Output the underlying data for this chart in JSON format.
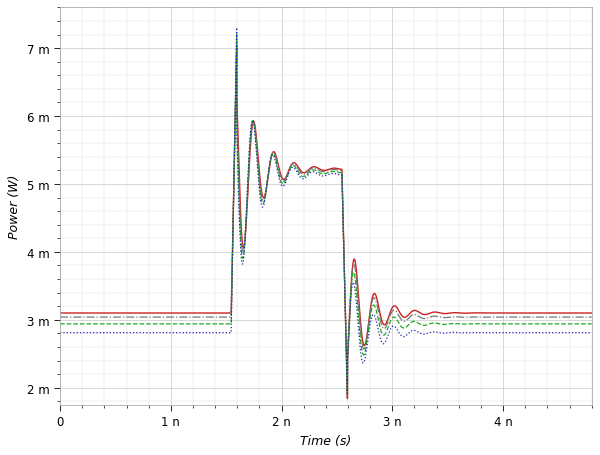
{
  "xlabel": "Time (s)",
  "ylabel": "Power (W)",
  "xlim": [
    0,
    4.8e-09
  ],
  "ylim": [
    0.00175,
    0.0076
  ],
  "xticks": [
    0,
    1e-09,
    2e-09,
    3e-09,
    4e-09
  ],
  "xtick_labels": [
    "0",
    "1 n",
    "2 n",
    "3 n",
    "4 n"
  ],
  "yticks": [
    0.002,
    0.003,
    0.004,
    0.005,
    0.006,
    0.007
  ],
  "ytick_labels": [
    "2 m",
    "3 m",
    "4 m",
    "5 m",
    "6 m",
    "7 m"
  ],
  "bg_color": "#ffffff",
  "colors": {
    "red": "#cc2222",
    "green": "#22aa22",
    "gray": "#777777",
    "blue": "#2222bb"
  },
  "t_rise": 1.57e-09,
  "t_fall": 2.57e-09,
  "osc_freq": 5500000000.0,
  "decay_tau_up": 1.8e-10,
  "decay_tau_dn": 1.8e-10,
  "channels": [
    {
      "base_low": 0.0031,
      "settle_high": 0.00522,
      "phase": 0.0,
      "peak_up": 0.007,
      "peak_down": 0.00182,
      "amp_up": 0.0019,
      "amp_dn": 0.0013,
      "color": "red",
      "ls": "solid",
      "lw": 1.0
    },
    {
      "base_low": 0.00304,
      "settle_high": 0.0052,
      "phase": 0.12,
      "peak_up": 0.0071,
      "peak_down": 0.00185,
      "amp_up": 0.00195,
      "amp_dn": 0.00125,
      "color": "gray",
      "ls": "dashdot",
      "lw": 0.9
    },
    {
      "base_low": 0.00294,
      "settle_high": 0.00517,
      "phase": 0.22,
      "peak_up": 0.0072,
      "peak_down": 0.00188,
      "amp_up": 0.002,
      "amp_dn": 0.0012,
      "color": "green",
      "ls": "dashed",
      "lw": 0.9
    },
    {
      "base_low": 0.00281,
      "settle_high": 0.00514,
      "phase": 0.32,
      "peak_up": 0.0073,
      "peak_down": 0.0019,
      "amp_up": 0.00205,
      "amp_dn": 0.00115,
      "color": "blue",
      "ls": "dotted",
      "lw": 0.9
    }
  ]
}
